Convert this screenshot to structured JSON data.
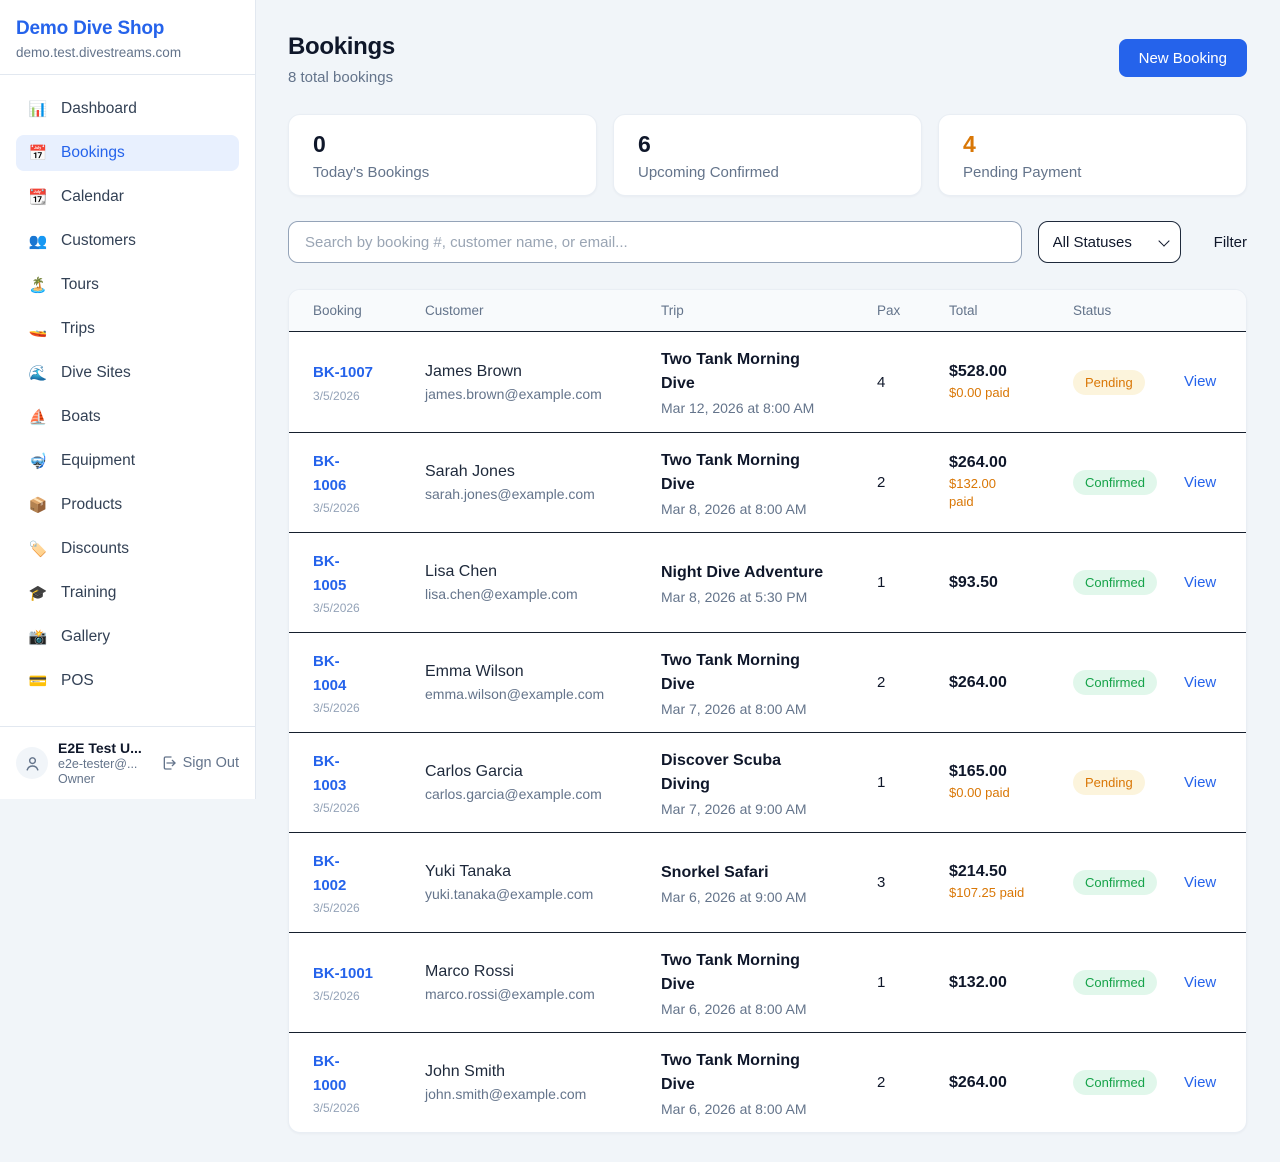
{
  "sidebar": {
    "logo": "Demo Dive Shop",
    "subdomain": "demo.test.divestreams.com",
    "items": [
      {
        "icon": "📊",
        "label": "Dashboard",
        "active": false
      },
      {
        "icon": "📅",
        "label": "Bookings",
        "active": true
      },
      {
        "icon": "📆",
        "label": "Calendar",
        "active": false
      },
      {
        "icon": "👥",
        "label": "Customers",
        "active": false
      },
      {
        "icon": "🏝️",
        "label": "Tours",
        "active": false
      },
      {
        "icon": "🚤",
        "label": "Trips",
        "active": false
      },
      {
        "icon": "🌊",
        "label": "Dive Sites",
        "active": false
      },
      {
        "icon": "⛵",
        "label": "Boats",
        "active": false
      },
      {
        "icon": "🤿",
        "label": "Equipment",
        "active": false
      },
      {
        "icon": "📦",
        "label": "Products",
        "active": false
      },
      {
        "icon": "🏷️",
        "label": "Discounts",
        "active": false
      },
      {
        "icon": "🎓",
        "label": "Training",
        "active": false
      },
      {
        "icon": "📸",
        "label": "Gallery",
        "active": false
      },
      {
        "icon": "💳",
        "label": "POS",
        "active": false
      }
    ],
    "user": {
      "name": "E2E Test U...",
      "email": "e2e-tester@...",
      "role": "Owner",
      "signout_label": "Sign Out"
    }
  },
  "header": {
    "title": "Bookings",
    "subtitle": "8 total bookings",
    "new_booking_label": "New Booking"
  },
  "stats": [
    {
      "value": "0",
      "label": "Today's Bookings",
      "color": "#0f172a"
    },
    {
      "value": "6",
      "label": "Upcoming Confirmed",
      "color": "#0f172a"
    },
    {
      "value": "4",
      "label": "Pending Payment",
      "color": "#d97706"
    }
  ],
  "filters": {
    "search_placeholder": "Search by booking #, customer name, or email...",
    "status_select_value": "All Statuses",
    "filter_label": "Filter"
  },
  "table": {
    "headers": [
      "Booking",
      "Customer",
      "Trip",
      "Pax",
      "Total",
      "Status"
    ],
    "view_label": "View",
    "rows": [
      {
        "id_lines": [
          "BK-1007"
        ],
        "date": "3/5/2026",
        "name": "James Brown",
        "email": "james.brown@example.com",
        "trip_lines": [
          "Two Tank Morning",
          "Dive"
        ],
        "trip_time": "Mar 12, 2026 at 8:00 AM",
        "pax": "4",
        "total": "$528.00",
        "paid_lines": [
          "$0.00 paid"
        ],
        "status": "Pending"
      },
      {
        "id_lines": [
          "BK-",
          "1006"
        ],
        "date": "3/5/2026",
        "name": "Sarah Jones",
        "email": "sarah.jones@example.com",
        "trip_lines": [
          "Two Tank Morning",
          "Dive"
        ],
        "trip_time": "Mar 8, 2026 at 8:00 AM",
        "pax": "2",
        "total": "$264.00",
        "paid_lines": [
          "$132.00",
          "paid"
        ],
        "status": "Confirmed"
      },
      {
        "id_lines": [
          "BK-",
          "1005"
        ],
        "date": "3/5/2026",
        "name": "Lisa Chen",
        "email": "lisa.chen@example.com",
        "trip_lines": [
          "Night Dive Adventure"
        ],
        "trip_time": "Mar 8, 2026 at 5:30 PM",
        "pax": "1",
        "total": "$93.50",
        "paid_lines": [],
        "status": "Confirmed"
      },
      {
        "id_lines": [
          "BK-",
          "1004"
        ],
        "date": "3/5/2026",
        "name": "Emma Wilson",
        "email": "emma.wilson@example.com",
        "trip_lines": [
          "Two Tank Morning",
          "Dive"
        ],
        "trip_time": "Mar 7, 2026 at 8:00 AM",
        "pax": "2",
        "total": "$264.00",
        "paid_lines": [],
        "status": "Confirmed"
      },
      {
        "id_lines": [
          "BK-",
          "1003"
        ],
        "date": "3/5/2026",
        "name": "Carlos Garcia",
        "email": "carlos.garcia@example.com",
        "trip_lines": [
          "Discover Scuba",
          "Diving"
        ],
        "trip_time": "Mar 7, 2026 at 9:00 AM",
        "pax": "1",
        "total": "$165.00",
        "paid_lines": [
          "$0.00 paid"
        ],
        "status": "Pending"
      },
      {
        "id_lines": [
          "BK-",
          "1002"
        ],
        "date": "3/5/2026",
        "name": "Yuki Tanaka",
        "email": "yuki.tanaka@example.com",
        "trip_lines": [
          "Snorkel Safari"
        ],
        "trip_time": "Mar 6, 2026 at 9:00 AM",
        "pax": "3",
        "total": "$214.50",
        "paid_lines": [
          "$107.25 paid"
        ],
        "status": "Confirmed"
      },
      {
        "id_lines": [
          "BK-1001"
        ],
        "date": "3/5/2026",
        "name": "Marco Rossi",
        "email": "marco.rossi@example.com",
        "trip_lines": [
          "Two Tank Morning",
          "Dive"
        ],
        "trip_time": "Mar 6, 2026 at 8:00 AM",
        "pax": "1",
        "total": "$132.00",
        "paid_lines": [],
        "status": "Confirmed"
      },
      {
        "id_lines": [
          "BK-",
          "1000"
        ],
        "date": "3/5/2026",
        "name": "John Smith",
        "email": "john.smith@example.com",
        "trip_lines": [
          "Two Tank Morning",
          "Dive"
        ],
        "trip_time": "Mar 6, 2026 at 8:00 AM",
        "pax": "2",
        "total": "$264.00",
        "paid_lines": [],
        "status": "Confirmed"
      }
    ]
  },
  "colors": {
    "accent_blue": "#2563eb",
    "pending_text": "#d97706",
    "pending_bg": "#fcf4dc",
    "confirmed_text": "#16a34a",
    "confirmed_bg": "#e1f7eb"
  }
}
